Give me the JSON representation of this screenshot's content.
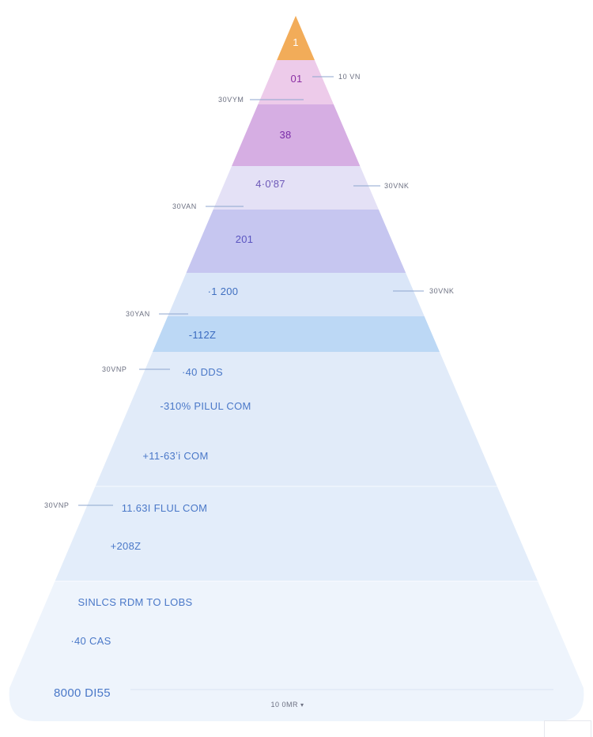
{
  "pyramid": {
    "tiers": [
      {
        "label": "1",
        "color": "#f2ac59",
        "text_color": "#ffffff"
      },
      {
        "label": "01",
        "color": "#edcbea",
        "text_color": "#8a2fa3"
      },
      {
        "label": "38",
        "color": "#d6aee3",
        "text_color": "#7a2ca8"
      },
      {
        "label": "4·0'87",
        "color": "#e4e1f6",
        "text_color": "#6d58b8"
      },
      {
        "label": "201",
        "color": "#c6c6f0",
        "text_color": "#5b55c0"
      },
      {
        "label": "·1 200",
        "color": "#dae6f8",
        "text_color": "#3f6fc0"
      },
      {
        "label": "-112Z",
        "color": "#bcd8f5",
        "text_color": "#3a6bc0"
      },
      {
        "label": "",
        "color": "#e1ebf9",
        "text_color": "#3f6fc0"
      },
      {
        "label": "",
        "color": "#e3edfa",
        "text_color": "#3f6fc0"
      },
      {
        "label": "",
        "color": "#eef4fc",
        "text_color": "#3f6fc0"
      }
    ],
    "inner_labels": [
      "·40 DDS",
      "-310% PILUL COM",
      "+11-63ʼi COM",
      "11.63I FLUL COM",
      "+208Z",
      "SINLCS RDM TO LOBS",
      "·40 CAS",
      "8000 DI55"
    ],
    "side_labels": [
      "10 VN",
      "30VYM",
      "30VNK",
      "30VAN",
      "30VNK",
      "30YAN",
      "30VNP",
      "30VNP"
    ],
    "footer_label": "10 0MR",
    "footer_marker": "▾"
  }
}
